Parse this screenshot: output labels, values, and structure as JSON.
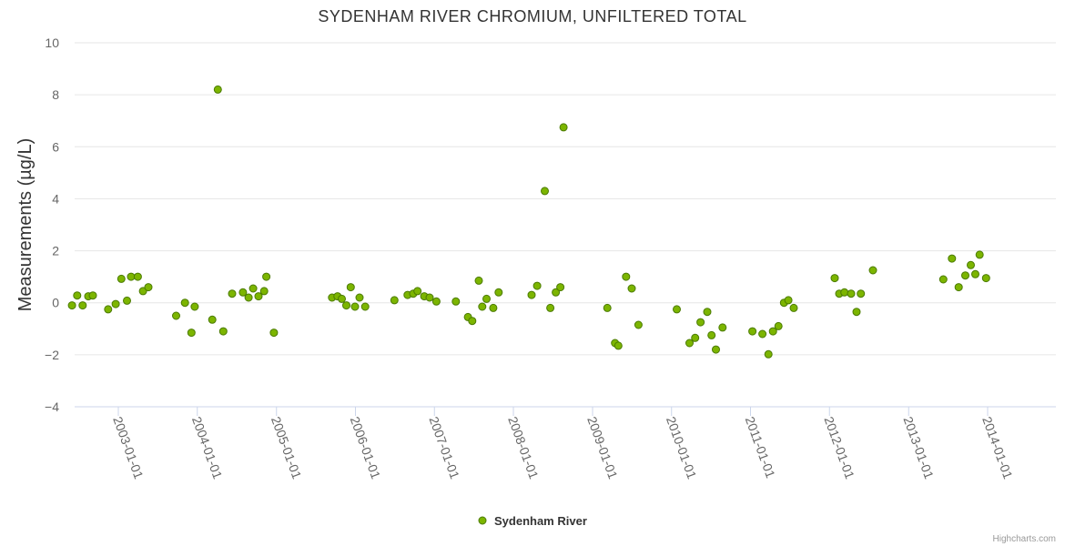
{
  "credits": "Highcharts.com",
  "colors": {
    "marker_fill": "#7cb500",
    "marker_stroke": "#4a7a00"
  },
  "chart_data": {
    "type": "scatter",
    "title": "SYDENHAM RIVER CHROMIUM, UNFILTERED TOTAL",
    "xlabel": "",
    "ylabel": "Measurements (µg/L)",
    "ylim": [
      -4,
      10
    ],
    "yticks": [
      -4,
      -2,
      0,
      2,
      4,
      6,
      8,
      10
    ],
    "ytick_labels": [
      "−4",
      "−2",
      "0",
      "2",
      "4",
      "6",
      "8",
      "10"
    ],
    "xlim": [
      "2002-06-01",
      "2014-12-15"
    ],
    "xticks": [
      "2003-01-01",
      "2004-01-01",
      "2005-01-01",
      "2006-01-01",
      "2007-01-01",
      "2008-01-01",
      "2009-01-01",
      "2010-01-01",
      "2011-01-01",
      "2012-01-01",
      "2013-01-01",
      "2014-01-01"
    ],
    "legend": "bottom-center",
    "series": [
      {
        "name": "Sydenham River",
        "points": [
          [
            "2002-06-01",
            -0.1
          ],
          [
            "2002-06-25",
            0.28
          ],
          [
            "2002-07-20",
            -0.1
          ],
          [
            "2002-08-15",
            0.25
          ],
          [
            "2002-09-05",
            0.28
          ],
          [
            "2002-11-15",
            -0.25
          ],
          [
            "2002-12-20",
            -0.05
          ],
          [
            "2003-01-15",
            0.92
          ],
          [
            "2003-02-10",
            0.08
          ],
          [
            "2003-03-01",
            1.0
          ],
          [
            "2003-04-01",
            1.0
          ],
          [
            "2003-04-25",
            0.45
          ],
          [
            "2003-05-20",
            0.6
          ],
          [
            "2003-09-25",
            -0.5
          ],
          [
            "2003-11-05",
            0.0
          ],
          [
            "2003-12-05",
            -1.15
          ],
          [
            "2003-12-20",
            -0.15
          ],
          [
            "2004-03-10",
            -0.65
          ],
          [
            "2004-04-05",
            8.2
          ],
          [
            "2004-04-30",
            -1.1
          ],
          [
            "2004-06-10",
            0.35
          ],
          [
            "2004-07-30",
            0.4
          ],
          [
            "2004-08-25",
            0.2
          ],
          [
            "2004-09-15",
            0.55
          ],
          [
            "2004-10-10",
            0.25
          ],
          [
            "2004-11-05",
            0.45
          ],
          [
            "2004-11-15",
            1.0
          ],
          [
            "2004-12-20",
            -1.15
          ],
          [
            "2005-09-15",
            0.2
          ],
          [
            "2005-10-10",
            0.25
          ],
          [
            "2005-10-30",
            0.15
          ],
          [
            "2005-11-20",
            -0.1
          ],
          [
            "2005-12-10",
            0.6
          ],
          [
            "2005-12-30",
            -0.15
          ],
          [
            "2006-01-20",
            0.2
          ],
          [
            "2006-02-15",
            -0.15
          ],
          [
            "2006-06-30",
            0.1
          ],
          [
            "2006-08-30",
            0.3
          ],
          [
            "2006-09-25",
            0.35
          ],
          [
            "2006-10-15",
            0.45
          ],
          [
            "2006-11-15",
            0.25
          ],
          [
            "2006-12-10",
            0.2
          ],
          [
            "2007-01-10",
            0.05
          ],
          [
            "2007-04-10",
            0.05
          ],
          [
            "2007-06-05",
            -0.55
          ],
          [
            "2007-06-25",
            -0.7
          ],
          [
            "2007-07-25",
            0.85
          ],
          [
            "2007-08-10",
            -0.15
          ],
          [
            "2007-08-30",
            0.15
          ],
          [
            "2007-09-30",
            -0.2
          ],
          [
            "2007-10-25",
            0.4
          ],
          [
            "2008-03-25",
            0.3
          ],
          [
            "2008-04-20",
            0.65
          ],
          [
            "2008-05-25",
            4.3
          ],
          [
            "2008-06-20",
            -0.2
          ],
          [
            "2008-07-15",
            0.4
          ],
          [
            "2008-08-05",
            0.6
          ],
          [
            "2008-08-20",
            6.75
          ],
          [
            "2009-03-10",
            -0.2
          ],
          [
            "2009-04-15",
            -1.55
          ],
          [
            "2009-04-30",
            -1.65
          ],
          [
            "2009-06-05",
            1.0
          ],
          [
            "2009-07-01",
            0.55
          ],
          [
            "2009-08-01",
            -0.85
          ],
          [
            "2010-01-25",
            -0.25
          ],
          [
            "2010-03-25",
            -1.55
          ],
          [
            "2010-04-20",
            -1.35
          ],
          [
            "2010-05-15",
            -0.75
          ],
          [
            "2010-06-15",
            -0.35
          ],
          [
            "2010-07-05",
            -1.25
          ],
          [
            "2010-07-25",
            -1.8
          ],
          [
            "2010-08-25",
            -0.95
          ],
          [
            "2011-01-10",
            -1.1
          ],
          [
            "2011-02-25",
            -1.2
          ],
          [
            "2011-03-25",
            -1.98
          ],
          [
            "2011-04-15",
            -1.1
          ],
          [
            "2011-05-10",
            -0.9
          ],
          [
            "2011-06-05",
            0.0
          ],
          [
            "2011-06-25",
            0.1
          ],
          [
            "2011-07-20",
            -0.2
          ],
          [
            "2012-01-25",
            0.95
          ],
          [
            "2012-02-15",
            0.35
          ],
          [
            "2012-03-10",
            0.4
          ],
          [
            "2012-04-10",
            0.35
          ],
          [
            "2012-05-05",
            -0.35
          ],
          [
            "2012-05-25",
            0.35
          ],
          [
            "2012-07-20",
            1.25
          ],
          [
            "2013-06-10",
            0.9
          ],
          [
            "2013-07-20",
            1.7
          ],
          [
            "2013-08-20",
            0.6
          ],
          [
            "2013-09-20",
            1.05
          ],
          [
            "2013-10-15",
            1.45
          ],
          [
            "2013-11-05",
            1.1
          ],
          [
            "2013-11-25",
            1.85
          ],
          [
            "2013-12-25",
            0.95
          ]
        ]
      }
    ]
  }
}
